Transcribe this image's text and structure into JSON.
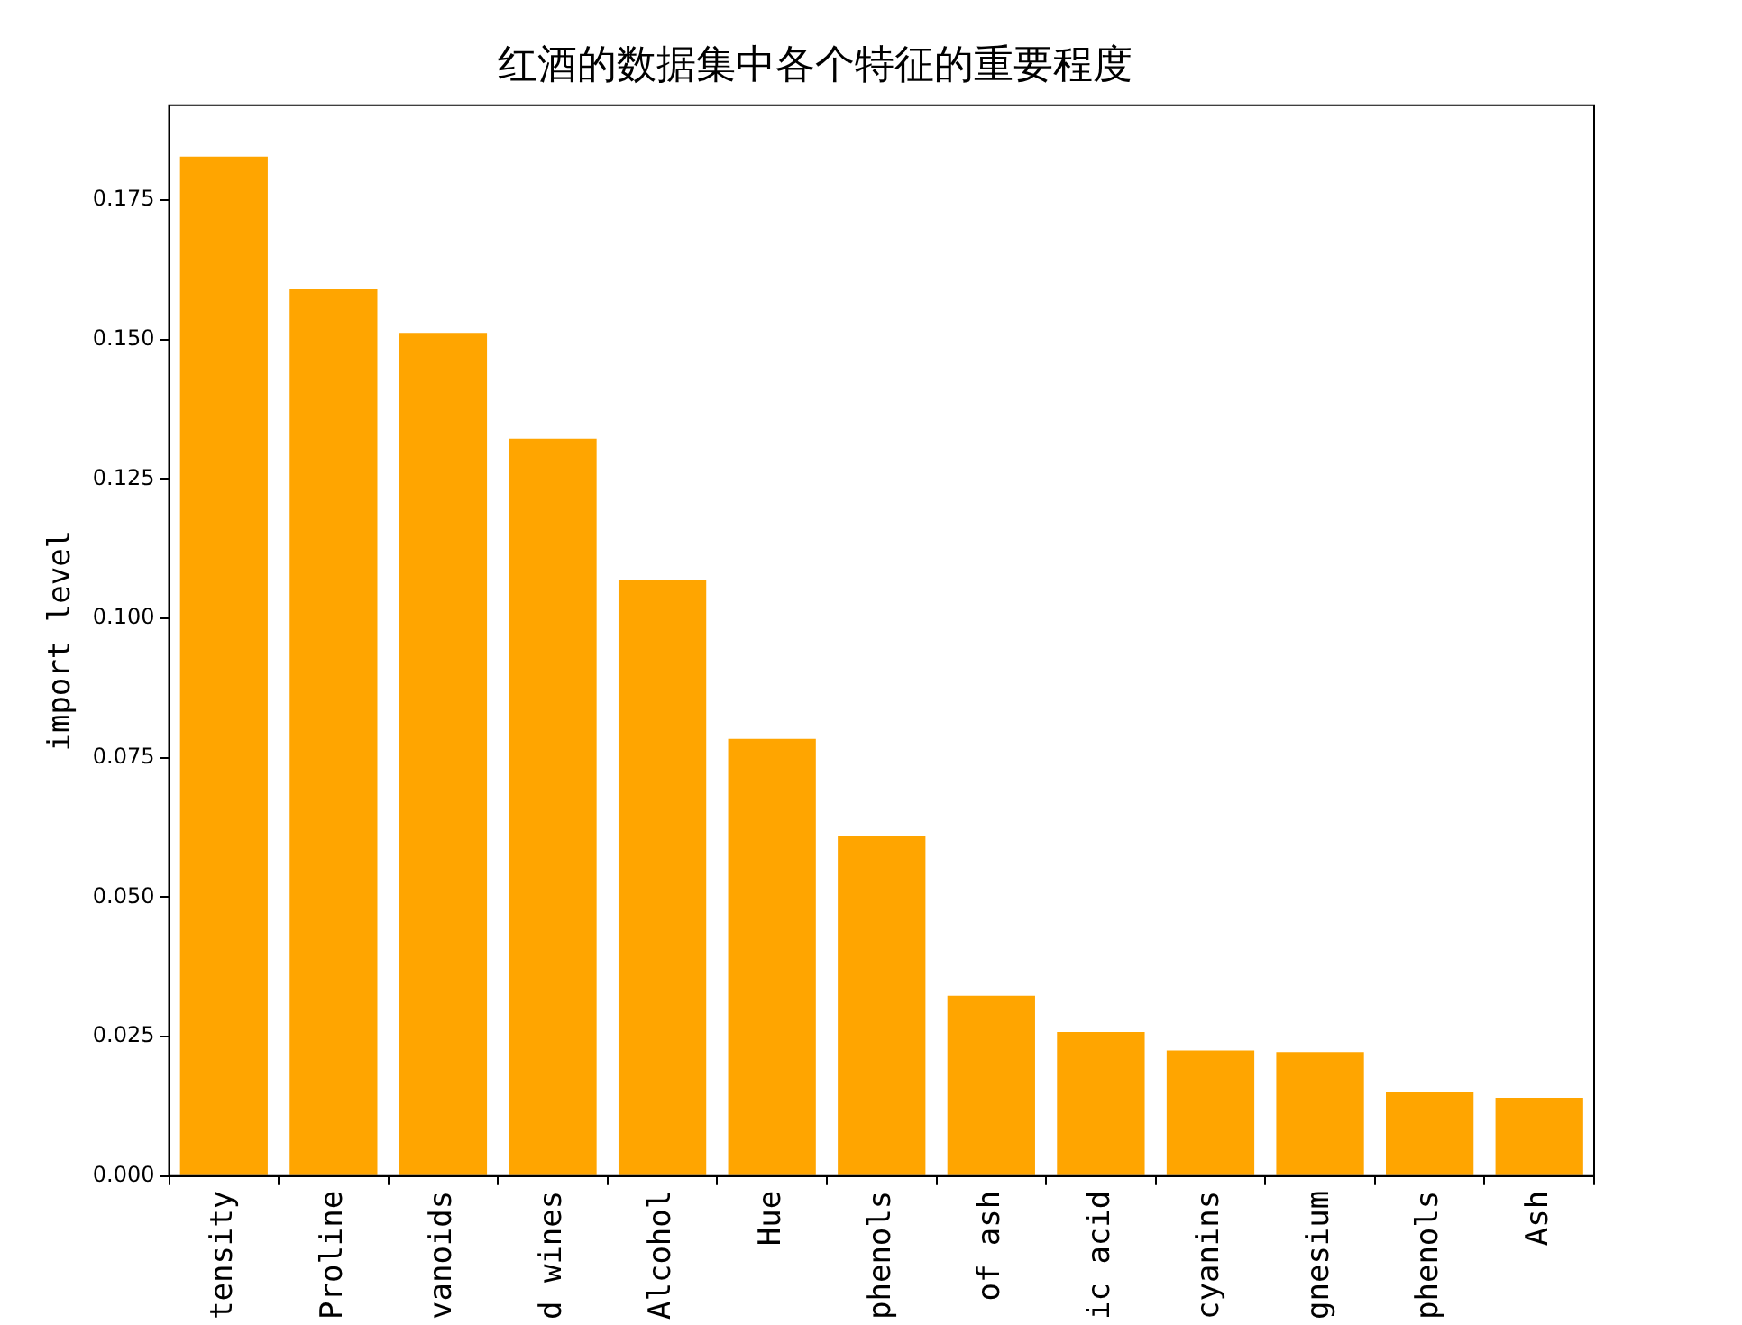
{
  "chart_data": {
    "type": "bar",
    "title": "红酒的数据集中各个特征的重要程度",
    "ylabel": "import level",
    "categories": [
      "tensity",
      "Proline",
      "vanoids",
      "d wines",
      "Alcohol",
      "Hue",
      "phenols",
      "of ash",
      "ic acid",
      "cyanins",
      "gnesium",
      "phenols",
      "Ash"
    ],
    "values": [
      0.1828,
      0.159,
      0.1512,
      0.1322,
      0.1068,
      0.0784,
      0.061,
      0.0323,
      0.0258,
      0.0225,
      0.0222,
      0.015,
      0.014
    ],
    "color": "#ffa500",
    "ylim": [
      0,
      0.192
    ],
    "yticks": [
      {
        "value": 0,
        "label": "0.000"
      },
      {
        "value": 0.025,
        "label": "0.025"
      },
      {
        "value": 0.05,
        "label": "0.050"
      },
      {
        "value": 0.075,
        "label": "0.075"
      },
      {
        "value": 0.1,
        "label": "0.100"
      },
      {
        "value": 0.125,
        "label": "0.125"
      },
      {
        "value": 0.15,
        "label": "0.150"
      },
      {
        "value": 0.175,
        "label": "0.175"
      }
    ],
    "grid": false,
    "legend": false
  }
}
